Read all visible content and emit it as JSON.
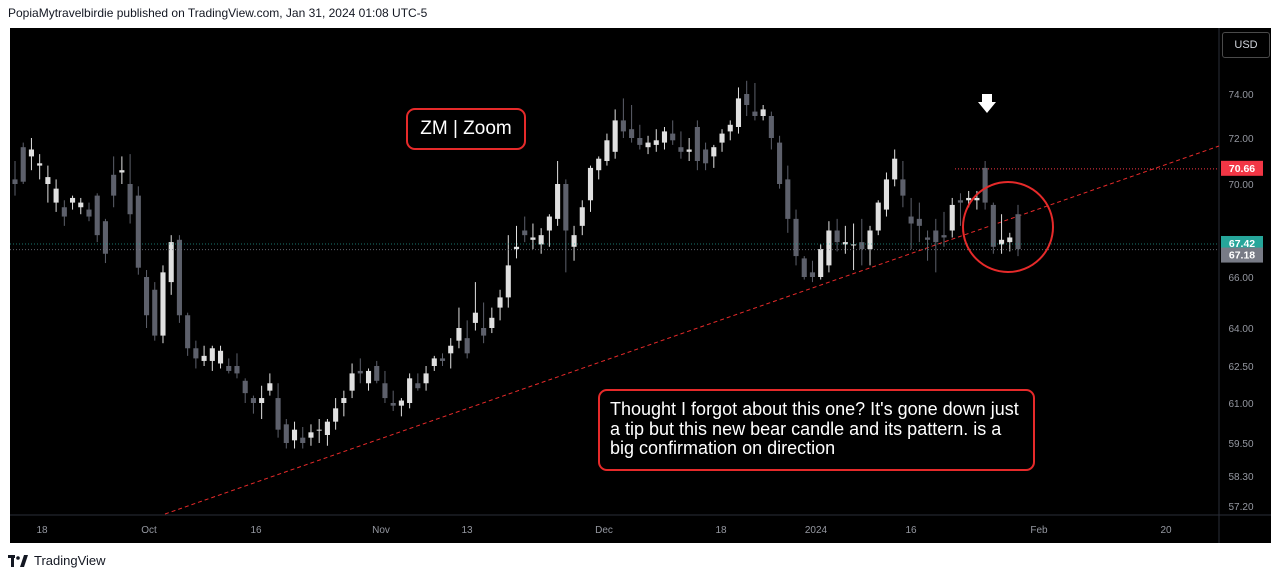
{
  "header": {
    "published": "PopiaMytravelbirdie published on TradingView.com, Jan 31, 2024 01:08 UTC-5"
  },
  "footer": {
    "brand": "TradingView",
    "logo_icon": "tradingview-logo-icon"
  },
  "currency_button": "USD",
  "chart_data": {
    "type": "candlestick",
    "symbol_title": "ZM | Zoom",
    "annotation": "Thought I forgot about this one? It's gone down just a tip but this new bear candle and its pattern. is a big confirmation on direction",
    "y_ticks": [
      "74.00",
      "72.00",
      "70.00",
      "66.00",
      "64.00",
      "62.50",
      "61.00",
      "59.50",
      "58.30",
      "57.20"
    ],
    "x_ticks": [
      "18",
      "Oct",
      "16",
      "Nov",
      "13",
      "Dec",
      "18",
      "2024",
      "16",
      "Feb",
      "20"
    ],
    "price_labels": [
      {
        "value": "70.66",
        "color": "#f23645"
      },
      {
        "value": "67.42",
        "color": "#26a69a"
      },
      {
        "value": "67.18",
        "color": "#787b86"
      }
    ],
    "colors": {
      "bull": "#e0e0e0",
      "bear": "#5d606b",
      "trendline": "#e62a2a",
      "annotation_border": "#e62a2a"
    },
    "candles": [
      [
        70.2,
        71.0,
        69.5,
        70.0
      ],
      [
        71.6,
        71.8,
        70.0,
        70.1
      ],
      [
        71.2,
        72.0,
        70.6,
        71.5
      ],
      [
        70.8,
        71.3,
        70.2,
        70.9
      ],
      [
        70.0,
        70.8,
        69.2,
        70.3
      ],
      [
        69.2,
        70.2,
        68.8,
        69.8
      ],
      [
        69.0,
        69.3,
        68.2,
        68.6
      ],
      [
        69.2,
        69.5,
        68.9,
        69.4
      ],
      [
        69.0,
        69.4,
        68.7,
        69.2
      ],
      [
        68.9,
        69.2,
        68.4,
        68.6
      ],
      [
        69.5,
        69.6,
        67.5,
        67.8
      ],
      [
        68.4,
        68.5,
        66.6,
        67.0
      ],
      [
        70.4,
        71.2,
        69.0,
        69.5
      ],
      [
        70.5,
        71.2,
        70.0,
        70.6
      ],
      [
        70.0,
        71.3,
        68.3,
        68.7
      ],
      [
        69.5,
        69.9,
        66.1,
        66.4
      ],
      [
        66.0,
        66.3,
        64.0,
        64.5
      ],
      [
        65.5,
        65.8,
        63.5,
        63.7
      ],
      [
        63.7,
        66.5,
        63.4,
        66.2
      ],
      [
        65.8,
        67.8,
        65.3,
        67.5
      ],
      [
        67.6,
        67.8,
        64.2,
        64.5
      ],
      [
        64.5,
        64.6,
        62.9,
        63.2
      ],
      [
        63.2,
        63.5,
        62.4,
        62.8
      ],
      [
        62.7,
        63.3,
        62.5,
        62.9
      ],
      [
        62.7,
        63.3,
        62.3,
        63.2
      ],
      [
        62.6,
        63.3,
        62.4,
        63.1
      ],
      [
        62.5,
        62.8,
        62.2,
        62.3
      ],
      [
        62.5,
        63.0,
        62.0,
        62.2
      ],
      [
        61.9,
        62.0,
        61.0,
        61.4
      ],
      [
        61.2,
        61.3,
        60.6,
        61.0
      ],
      [
        61.0,
        61.7,
        60.4,
        61.2
      ],
      [
        61.5,
        62.2,
        61.3,
        61.8
      ],
      [
        61.2,
        61.8,
        59.7,
        60.0
      ],
      [
        60.2,
        60.4,
        59.3,
        59.5
      ],
      [
        59.6,
        60.3,
        59.3,
        60.0
      ],
      [
        59.7,
        60.1,
        59.3,
        59.5
      ],
      [
        59.7,
        60.2,
        59.4,
        59.9
      ],
      [
        60.0,
        60.4,
        59.5,
        60.0
      ],
      [
        59.8,
        60.4,
        59.4,
        60.3
      ],
      [
        60.3,
        61.2,
        60.0,
        60.8
      ],
      [
        61.0,
        61.5,
        60.5,
        61.2
      ],
      [
        61.5,
        62.6,
        61.2,
        62.2
      ],
      [
        62.3,
        62.8,
        61.8,
        62.2
      ],
      [
        61.8,
        62.4,
        61.5,
        62.3
      ],
      [
        62.5,
        62.7,
        61.8,
        61.9
      ],
      [
        61.8,
        62.3,
        61.0,
        61.2
      ],
      [
        61.0,
        61.5,
        60.7,
        60.9
      ],
      [
        60.9,
        61.2,
        60.5,
        61.1
      ],
      [
        61.0,
        62.2,
        60.8,
        62.0
      ],
      [
        61.8,
        62.2,
        61.5,
        61.6
      ],
      [
        61.8,
        62.5,
        61.5,
        62.2
      ],
      [
        62.5,
        62.9,
        62.3,
        62.8
      ],
      [
        62.8,
        63.0,
        62.5,
        62.7
      ],
      [
        63.0,
        63.6,
        62.4,
        63.3
      ],
      [
        63.5,
        64.8,
        63.2,
        64.0
      ],
      [
        63.6,
        64.3,
        62.8,
        63.0
      ],
      [
        64.2,
        65.8,
        63.9,
        64.6
      ],
      [
        64.0,
        65.0,
        63.4,
        63.7
      ],
      [
        64.0,
        64.8,
        63.8,
        64.4
      ],
      [
        64.8,
        65.5,
        64.3,
        65.2
      ],
      [
        65.2,
        67.8,
        64.8,
        66.5
      ],
      [
        67.2,
        68.2,
        66.8,
        67.3
      ],
      [
        68.0,
        68.6,
        67.5,
        67.8
      ],
      [
        67.6,
        68.3,
        67.2,
        67.7
      ],
      [
        67.4,
        68.1,
        67.0,
        67.8
      ],
      [
        68.0,
        68.7,
        67.3,
        68.6
      ],
      [
        68.5,
        71.0,
        68.2,
        70.0
      ],
      [
        70.0,
        70.2,
        66.2,
        68.0
      ],
      [
        67.3,
        68.2,
        66.7,
        67.8
      ],
      [
        68.2,
        69.3,
        67.8,
        69.0
      ],
      [
        69.3,
        70.8,
        68.8,
        70.7
      ],
      [
        70.6,
        71.2,
        70.2,
        71.1
      ],
      [
        71.0,
        72.2,
        70.8,
        71.9
      ],
      [
        71.4,
        73.3,
        71.1,
        72.8
      ],
      [
        72.8,
        73.8,
        72.0,
        72.3
      ],
      [
        72.4,
        73.5,
        71.8,
        72.0
      ],
      [
        72.0,
        72.6,
        71.5,
        71.7
      ],
      [
        71.6,
        72.1,
        71.3,
        71.8
      ],
      [
        71.7,
        72.4,
        71.4,
        71.9
      ],
      [
        71.8,
        72.5,
        71.5,
        72.3
      ],
      [
        72.2,
        72.8,
        71.7,
        71.9
      ],
      [
        71.6,
        72.3,
        71.1,
        71.4
      ],
      [
        71.4,
        72.0,
        71.0,
        71.5
      ],
      [
        72.5,
        72.8,
        70.6,
        71.0
      ],
      [
        71.5,
        71.8,
        70.6,
        70.9
      ],
      [
        71.2,
        71.7,
        70.7,
        71.6
      ],
      [
        71.8,
        72.4,
        71.4,
        72.2
      ],
      [
        72.3,
        72.8,
        71.9,
        72.6
      ],
      [
        72.5,
        74.3,
        72.2,
        73.8
      ],
      [
        74.0,
        74.6,
        73.0,
        73.5
      ],
      [
        73.2,
        74.5,
        72.8,
        73.0
      ],
      [
        73.0,
        73.5,
        72.8,
        73.3
      ],
      [
        73.0,
        73.2,
        71.5,
        72.0
      ],
      [
        71.8,
        72.1,
        69.8,
        70.0
      ],
      [
        70.2,
        70.8,
        67.9,
        68.5
      ],
      [
        68.5,
        68.9,
        66.5,
        66.9
      ],
      [
        66.8,
        66.9,
        65.9,
        66.0
      ],
      [
        66.2,
        66.7,
        65.8,
        66.0
      ],
      [
        66.0,
        67.4,
        65.9,
        67.2
      ],
      [
        66.5,
        68.4,
        66.2,
        68.0
      ],
      [
        68.0,
        68.5,
        67.1,
        67.5
      ],
      [
        67.4,
        68.2,
        67.0,
        67.5
      ],
      [
        67.4,
        68.3,
        66.3,
        67.4
      ],
      [
        67.5,
        68.5,
        66.5,
        67.2
      ],
      [
        67.2,
        68.2,
        66.5,
        68.0
      ],
      [
        68.0,
        69.3,
        67.8,
        69.2
      ],
      [
        68.9,
        70.5,
        68.6,
        70.2
      ],
      [
        70.2,
        71.5,
        69.9,
        71.1
      ],
      [
        70.2,
        71.0,
        69.0,
        69.5
      ],
      [
        68.6,
        69.4,
        67.2,
        68.3
      ],
      [
        68.5,
        69.2,
        67.5,
        68.2
      ],
      [
        67.7,
        68.0,
        66.7,
        67.6
      ],
      [
        68.0,
        68.5,
        66.2,
        67.5
      ],
      [
        67.8,
        68.8,
        67.3,
        67.7
      ],
      [
        68.0,
        69.4,
        67.7,
        69.1
      ],
      [
        69.3,
        69.6,
        68.2,
        69.2
      ],
      [
        69.3,
        69.7,
        69.0,
        69.4
      ],
      [
        69.3,
        69.7,
        68.9,
        69.4
      ],
      [
        70.7,
        71.0,
        68.9,
        69.2
      ],
      [
        69.1,
        69.2,
        67.0,
        67.3
      ],
      [
        67.4,
        68.7,
        67.0,
        67.6
      ],
      [
        67.5,
        67.9,
        67.1,
        67.7
      ],
      [
        68.7,
        69.1,
        66.9,
        67.2
      ]
    ],
    "resistance_line": 70.66,
    "arrow_marker": "down-arrow-icon",
    "highlight_circle": true
  }
}
